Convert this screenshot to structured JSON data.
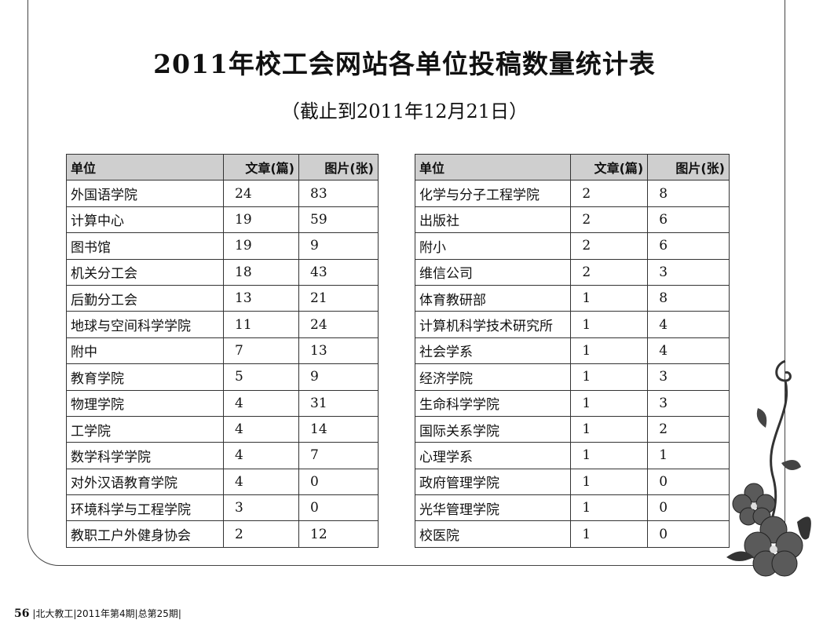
{
  "title": "2011年校工会网站各单位投稿数量统计表",
  "subtitle": "（截止到2011年12月21日）",
  "headers": [
    "单位",
    "文章(篇)",
    "图片(张)"
  ],
  "left_table": [
    [
      "外国语学院",
      "24",
      "83"
    ],
    [
      "计算中心",
      "19",
      "59"
    ],
    [
      "图书馆",
      "19",
      "9"
    ],
    [
      "机关分工会",
      "18",
      "43"
    ],
    [
      "后勤分工会",
      "13",
      "21"
    ],
    [
      "地球与空间科学学院",
      "11",
      "24"
    ],
    [
      "附中",
      "7",
      "13"
    ],
    [
      "教育学院",
      "5",
      "9"
    ],
    [
      "物理学院",
      "4",
      "31"
    ],
    [
      "工学院",
      "4",
      "14"
    ],
    [
      "数学科学学院",
      "4",
      "7"
    ],
    [
      "对外汉语教育学院",
      "4",
      "0"
    ],
    [
      "环境科学与工程学院",
      "3",
      "0"
    ],
    [
      "教职工户外健身协会",
      "2",
      "12"
    ]
  ],
  "right_table": [
    [
      "化学与分子工程学院",
      "2",
      "8"
    ],
    [
      "出版社",
      "2",
      "6"
    ],
    [
      "附小",
      "2",
      "6"
    ],
    [
      "维信公司",
      "2",
      "3"
    ],
    [
      "体育教研部",
      "1",
      "8"
    ],
    [
      "计算机科学技术研究所",
      "1",
      "4"
    ],
    [
      "社会学系",
      "1",
      "4"
    ],
    [
      "经济学院",
      "1",
      "3"
    ],
    [
      "生命科学学院",
      "1",
      "3"
    ],
    [
      "国际关系学院",
      "1",
      "2"
    ],
    [
      "心理学系",
      "1",
      "1"
    ],
    [
      "政府管理学院",
      "1",
      "0"
    ],
    [
      "光华管理学院",
      "1",
      "0"
    ],
    [
      "校医院",
      "1",
      "0"
    ]
  ],
  "footer": {
    "page": "56",
    "text": "|北大教工|2011年第4期|总第25期|"
  }
}
